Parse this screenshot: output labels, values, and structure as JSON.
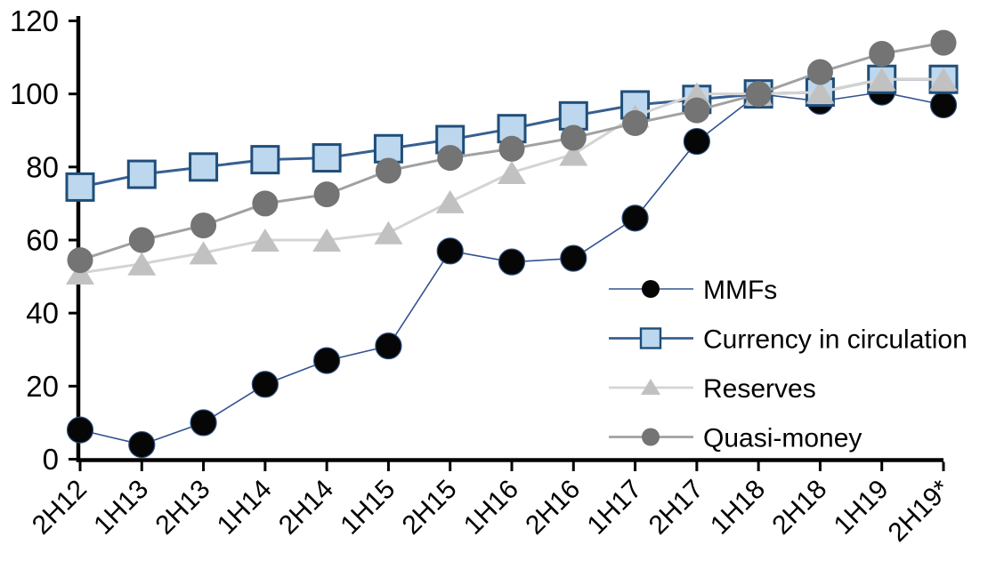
{
  "chart_data": {
    "type": "line",
    "title": "",
    "xlabel": "",
    "ylabel": "",
    "categories": [
      "2H12",
      "1H13",
      "2H13",
      "1H14",
      "2H14",
      "1H15",
      "2H15",
      "1H16",
      "2H16",
      "1H17",
      "2H17",
      "1H18",
      "2H18",
      "1H19",
      "2H19*"
    ],
    "series": [
      {
        "name": "MMFs",
        "marker": "circle",
        "marker_fill": "#060606",
        "marker_stroke": "#2b4d7e",
        "line_color": "#31538f",
        "line_width": 1.6,
        "values": [
          8,
          4,
          10,
          20.5,
          27,
          31,
          57,
          54,
          55,
          66,
          87,
          100,
          98,
          100.5,
          97
        ]
      },
      {
        "name": "Currency in circulation",
        "marker": "square",
        "marker_fill": "#bdd7ee",
        "marker_stroke": "#1f4e79",
        "line_color": "#366092",
        "line_width": 3,
        "values": [
          74.5,
          78,
          80,
          82,
          82.5,
          85,
          87.5,
          90.5,
          94,
          97,
          98.5,
          100,
          100.5,
          104,
          104
        ]
      },
      {
        "name": "Reserves",
        "marker": "triangle",
        "marker_fill": "#c1c1c1",
        "marker_stroke": "none",
        "line_color": "#d4d4d4",
        "line_width": 3,
        "values": [
          51,
          53.5,
          56.5,
          60,
          60,
          62,
          70.5,
          78.5,
          83.5,
          94,
          100,
          100,
          100.5,
          104,
          104
        ]
      },
      {
        "name": "Quasi-money",
        "marker": "circle",
        "marker_fill": "#747474",
        "marker_stroke": "none",
        "line_color": "#a1a1a1",
        "line_width": 3,
        "values": [
          54.5,
          60,
          64,
          70,
          72.5,
          79,
          82.5,
          85,
          88,
          92,
          95.5,
          100,
          106,
          111,
          114
        ]
      }
    ],
    "ylim": [
      0,
      120
    ],
    "yticks": [
      0,
      20,
      40,
      60,
      80,
      100,
      120
    ],
    "grid": false,
    "legend_position": "middle-right",
    "legend_labels": [
      "MMFs",
      "Currency in circulation",
      "Reserves",
      "Quasi-money"
    ],
    "axis_color": "#000000"
  }
}
